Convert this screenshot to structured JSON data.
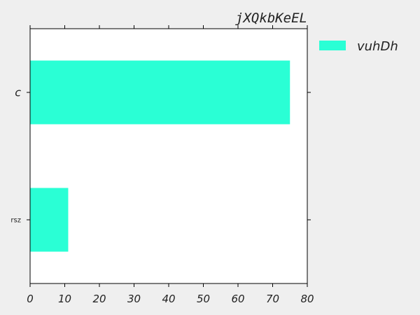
{
  "chart_data": {
    "type": "bar",
    "orientation": "horizontal",
    "title": "jXQkbKeEL",
    "categories": [
      "rsz",
      "c"
    ],
    "series": [
      {
        "name": "vuhDh",
        "values": [
          11,
          75
        ]
      }
    ],
    "xlim": [
      0,
      80
    ],
    "xticks": [
      "0",
      "10",
      "20",
      "30",
      "40",
      "50",
      "60",
      "70",
      "80"
    ],
    "xlabel": "",
    "ylabel": "",
    "grid": false,
    "legend_position": "outside-top-right",
    "colors": {
      "bar": "#2affd5",
      "background": "#efefef",
      "plot_area": "#ffffff",
      "axis": "#000000"
    }
  }
}
